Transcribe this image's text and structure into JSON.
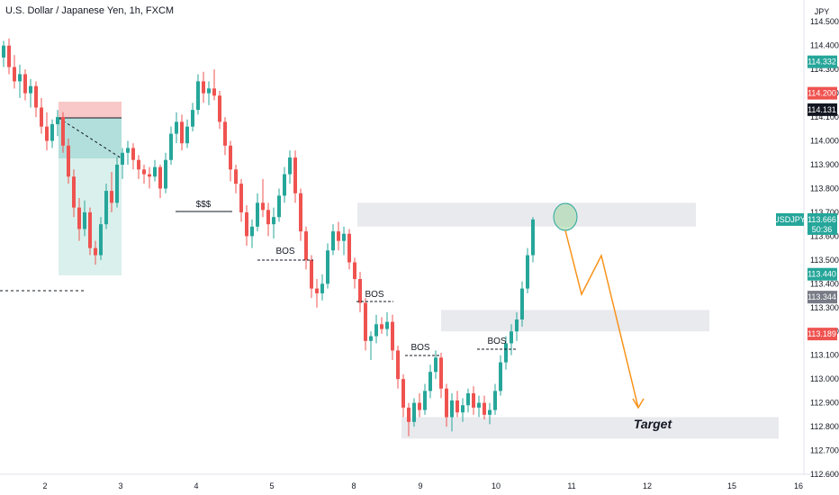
{
  "header": {
    "title": "U.S. Dollar / Japanese Yen, 1h, FXCM",
    "currency": "JPY"
  },
  "colors": {
    "up": "#26a69a",
    "down": "#ef5350",
    "symbol_tag": "#26a69a",
    "black_tag": "#131722",
    "gray_tag": "#787b86",
    "zone": "#e9eaee",
    "projection": "#f7931a",
    "circle_fill": "#a5d6a7",
    "circle_stroke": "#26a69a"
  },
  "chart_data": {
    "type": "candlestick",
    "symbol": "USDJPY",
    "ylim": [
      112.6,
      114.55
    ],
    "y_ticks": [
      "114.500",
      "114.400",
      "114.300",
      "114.200",
      "114.100",
      "114.000",
      "113.900",
      "113.800",
      "113.700",
      "113.600",
      "113.500",
      "113.400",
      "113.300",
      "113.200",
      "113.100",
      "113.000",
      "112.900",
      "112.800",
      "112.700",
      "112.600"
    ],
    "x_ticks": [
      "2",
      "3",
      "4",
      "5",
      "8",
      "9",
      "10",
      "11",
      "12",
      "15",
      "16"
    ],
    "candles": [
      [
        114.35,
        114.42,
        114.31,
        114.4
      ],
      [
        114.4,
        114.43,
        114.28,
        114.31
      ],
      [
        114.31,
        114.36,
        114.22,
        114.25
      ],
      [
        114.25,
        114.32,
        114.18,
        114.28
      ],
      [
        114.28,
        114.3,
        114.17,
        114.2
      ],
      [
        114.2,
        114.26,
        114.14,
        114.23
      ],
      [
        114.23,
        114.25,
        114.1,
        114.14
      ],
      [
        114.14,
        114.18,
        114.03,
        114.06
      ],
      [
        114.06,
        114.12,
        113.96,
        114.0
      ],
      [
        114.0,
        114.09,
        113.97,
        114.07
      ],
      [
        114.07,
        114.13,
        114.02,
        114.1
      ],
      [
        114.1,
        114.12,
        113.95,
        113.98
      ],
      [
        113.98,
        114.01,
        113.82,
        113.85
      ],
      [
        113.85,
        113.88,
        113.68,
        113.72
      ],
      [
        113.72,
        113.76,
        113.58,
        113.63
      ],
      [
        113.63,
        113.75,
        113.6,
        113.7
      ],
      [
        113.7,
        113.72,
        113.52,
        113.55
      ],
      [
        113.55,
        113.58,
        113.48,
        113.52
      ],
      [
        113.52,
        113.68,
        113.5,
        113.65
      ],
      [
        113.65,
        113.82,
        113.63,
        113.79
      ],
      [
        113.79,
        113.87,
        113.7,
        113.74
      ],
      [
        113.74,
        113.93,
        113.72,
        113.9
      ],
      [
        113.9,
        113.97,
        113.84,
        113.95
      ],
      [
        113.95,
        114.0,
        113.9,
        113.97
      ],
      [
        113.97,
        113.99,
        113.88,
        113.92
      ],
      [
        113.92,
        113.94,
        113.84,
        113.88
      ],
      [
        113.88,
        113.9,
        113.82,
        113.86
      ],
      [
        113.86,
        113.89,
        113.8,
        113.85
      ],
      [
        113.85,
        113.92,
        113.83,
        113.89
      ],
      [
        113.89,
        113.9,
        113.76,
        113.8
      ],
      [
        113.8,
        113.95,
        113.78,
        113.92
      ],
      [
        113.92,
        114.06,
        113.9,
        114.03
      ],
      [
        114.03,
        114.12,
        113.99,
        114.08
      ],
      [
        114.08,
        114.11,
        113.96,
        113.99
      ],
      [
        113.99,
        114.09,
        113.97,
        114.06
      ],
      [
        114.06,
        114.16,
        114.04,
        114.13
      ],
      [
        114.13,
        114.28,
        114.11,
        114.25
      ],
      [
        114.25,
        114.29,
        114.16,
        114.2
      ],
      [
        114.2,
        114.25,
        114.15,
        114.22
      ],
      [
        114.22,
        114.3,
        114.17,
        114.19
      ],
      [
        114.19,
        114.21,
        114.05,
        114.08
      ],
      [
        114.08,
        114.1,
        113.94,
        113.98
      ],
      [
        113.98,
        114.0,
        113.83,
        113.88
      ],
      [
        113.88,
        113.9,
        113.78,
        113.82
      ],
      [
        113.82,
        113.84,
        113.66,
        113.7
      ],
      [
        113.7,
        113.73,
        113.56,
        113.6
      ],
      [
        113.6,
        113.67,
        113.55,
        113.64
      ],
      [
        113.64,
        113.78,
        113.62,
        113.74
      ],
      [
        113.74,
        113.84,
        113.68,
        113.71
      ],
      [
        113.71,
        113.74,
        113.6,
        113.65
      ],
      [
        113.65,
        113.72,
        113.59,
        113.68
      ],
      [
        113.68,
        113.8,
        113.66,
        113.77
      ],
      [
        113.77,
        113.89,
        113.74,
        113.86
      ],
      [
        113.86,
        113.96,
        113.82,
        113.93
      ],
      [
        113.93,
        113.96,
        113.74,
        113.78
      ],
      [
        113.78,
        113.8,
        113.58,
        113.62
      ],
      [
        113.62,
        113.64,
        113.46,
        113.5
      ],
      [
        113.5,
        113.52,
        113.34,
        113.38
      ],
      [
        113.38,
        113.42,
        113.3,
        113.36
      ],
      [
        113.36,
        113.44,
        113.33,
        113.4
      ],
      [
        113.4,
        113.57,
        113.38,
        113.54
      ],
      [
        113.54,
        113.65,
        113.52,
        113.62
      ],
      [
        113.62,
        113.66,
        113.54,
        113.58
      ],
      [
        113.58,
        113.64,
        113.52,
        113.61
      ],
      [
        113.61,
        113.63,
        113.46,
        113.49
      ],
      [
        113.49,
        113.51,
        113.38,
        113.42
      ],
      [
        113.42,
        113.45,
        113.28,
        113.32
      ],
      [
        113.32,
        113.34,
        113.12,
        113.16
      ],
      [
        113.16,
        113.2,
        113.08,
        113.18
      ],
      [
        113.18,
        113.27,
        113.15,
        113.23
      ],
      [
        113.23,
        113.26,
        113.19,
        113.21
      ],
      [
        113.21,
        113.28,
        113.18,
        113.24
      ],
      [
        113.24,
        113.27,
        113.08,
        113.12
      ],
      [
        113.12,
        113.14,
        112.96,
        113.0
      ],
      [
        113.0,
        113.02,
        112.84,
        112.88
      ],
      [
        112.88,
        112.9,
        112.76,
        112.82
      ],
      [
        112.82,
        112.92,
        112.8,
        112.9
      ],
      [
        112.9,
        112.94,
        112.84,
        112.87
      ],
      [
        112.87,
        112.98,
        112.85,
        112.95
      ],
      [
        112.95,
        113.06,
        112.92,
        113.03
      ],
      [
        113.03,
        113.12,
        113.0,
        113.09
      ],
      [
        113.09,
        113.11,
        112.92,
        112.96
      ],
      [
        112.96,
        112.98,
        112.8,
        112.84
      ],
      [
        112.84,
        112.94,
        112.78,
        112.91
      ],
      [
        112.91,
        112.95,
        112.84,
        112.86
      ],
      [
        112.86,
        112.92,
        112.82,
        112.89
      ],
      [
        112.89,
        112.96,
        112.86,
        112.94
      ],
      [
        112.94,
        112.97,
        112.85,
        112.88
      ],
      [
        112.88,
        112.93,
        112.84,
        112.9
      ],
      [
        112.9,
        112.93,
        112.83,
        112.85
      ],
      [
        112.85,
        112.9,
        112.81,
        112.87
      ],
      [
        112.87,
        112.98,
        112.85,
        112.95
      ],
      [
        112.95,
        113.1,
        112.93,
        113.07
      ],
      [
        113.07,
        113.18,
        113.04,
        113.15
      ],
      [
        113.15,
        113.23,
        113.1,
        113.2
      ],
      [
        113.2,
        113.28,
        113.16,
        113.25
      ],
      [
        113.25,
        113.41,
        113.22,
        113.38
      ],
      [
        113.38,
        113.55,
        113.36,
        113.52
      ],
      [
        113.52,
        113.68,
        113.49,
        113.67
      ]
    ],
    "zones": [
      {
        "y_top": 113.74,
        "y_bottom": 113.64
      },
      {
        "y_top": 113.29,
        "y_bottom": 113.2
      },
      {
        "y_top": 112.84,
        "y_bottom": 112.75
      }
    ],
    "annotations": {
      "liquidity_label": "$$$",
      "bos_labels": [
        "BOS",
        "BOS",
        "BOS",
        "BOS"
      ],
      "target_label": "Target"
    },
    "price_tags": [
      {
        "value": "114.332",
        "style": "up"
      },
      {
        "value": "114.200",
        "style": "down"
      },
      {
        "value": "114.131",
        "style": "black"
      },
      {
        "value": "113.440",
        "style": "up"
      },
      {
        "value": "113.344",
        "style": "gray"
      },
      {
        "value": "113.189",
        "style": "down"
      }
    ],
    "symbol_tag": {
      "symbol": "USDJPY",
      "price": "113.666",
      "countdown": "50:36"
    },
    "grid": false
  }
}
